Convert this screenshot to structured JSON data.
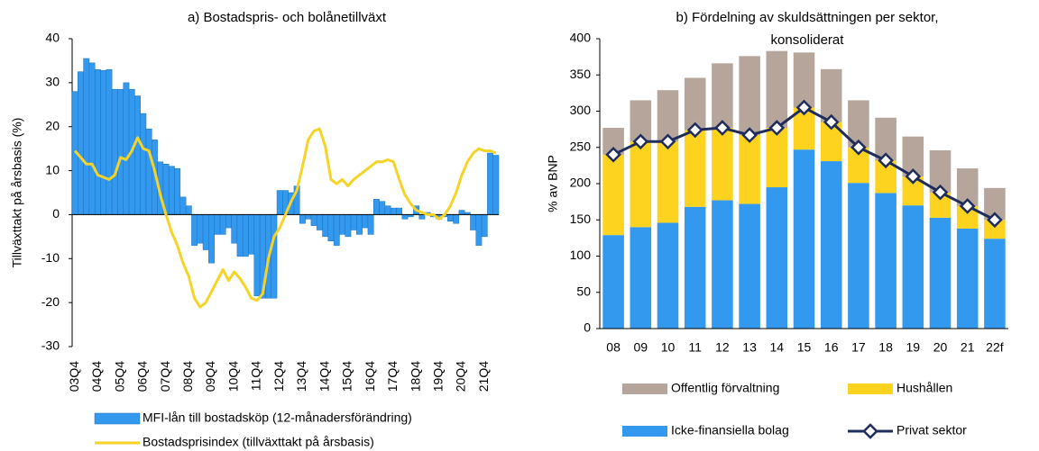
{
  "chart_data": [
    {
      "type": "bar_line",
      "title": "a) Bostadspris- och bolånetillväxt",
      "y_label": "Tillväxttakt på årsbasis (%)",
      "categories": [
        "03Q4",
        null,
        null,
        null,
        "04Q4",
        null,
        null,
        null,
        "05Q4",
        null,
        null,
        null,
        "06Q4",
        null,
        null,
        null,
        "07Q4",
        null,
        null,
        null,
        "08Q4",
        null,
        null,
        null,
        "09Q4",
        null,
        null,
        null,
        "10Q4",
        null,
        null,
        null,
        "11Q4",
        null,
        null,
        null,
        "12Q4",
        null,
        null,
        null,
        "13Q4",
        null,
        null,
        null,
        "14Q4",
        null,
        null,
        null,
        "15Q4",
        null,
        null,
        null,
        "16Q4",
        null,
        null,
        null,
        "17Q4",
        null,
        null,
        null,
        "18Q4",
        null,
        null,
        null,
        "19Q4",
        null,
        null,
        null,
        "20Q4",
        null,
        null,
        null,
        "21Q4",
        null,
        null
      ],
      "series": [
        {
          "name": "MFI-lån till bostadsköp (12-månadersförändring)",
          "kind": "bar",
          "color": "#3399ee",
          "values": [
            28,
            32.5,
            35.5,
            34.5,
            33,
            32.8,
            33,
            28.5,
            28.5,
            30,
            28.5,
            27,
            23,
            19.5,
            17,
            12,
            11.5,
            11,
            10.5,
            4,
            2,
            -7,
            -6.5,
            -8,
            -11,
            -4.5,
            -4.5,
            -3,
            -6.5,
            -9.5,
            -9.5,
            -9,
            -18.5,
            -19,
            -19,
            -19,
            5.5,
            5.5,
            5,
            6.5,
            -2,
            -1,
            -2.5,
            -3.5,
            -5,
            -6,
            -7,
            -4.5,
            -5,
            -3.5,
            -4.5,
            -3,
            -4.5,
            3.5,
            3,
            2,
            1.5,
            1.5,
            -1,
            -0.5,
            2,
            -1,
            0.5,
            -0.5,
            -1,
            -0.5,
            -1.5,
            -2,
            1,
            0.5,
            -3.5,
            -7,
            -5,
            14,
            13.5
          ]
        },
        {
          "name": "Bostadsprisindex (tillväxttakt på årsbasis)",
          "kind": "line",
          "color": "#f5d327",
          "values": [
            14.5,
            13,
            11.5,
            11.5,
            9,
            8.5,
            8,
            9,
            13,
            12.5,
            14.5,
            17.5,
            15,
            14.5,
            10,
            4.5,
            0,
            -4,
            -7,
            -11,
            -14,
            -19,
            -21,
            -20,
            -17.5,
            -15,
            -12.5,
            -15,
            -13,
            -14.5,
            -16.5,
            -19,
            -19.5,
            -18,
            -10,
            -5,
            -3,
            0,
            3,
            5.5,
            11,
            17,
            19,
            19.5,
            15.5,
            8,
            7,
            8,
            6.5,
            8,
            9,
            10,
            11,
            12,
            12,
            12.5,
            12,
            8,
            4.5,
            2.5,
            1,
            0.5,
            0,
            0,
            -1,
            0,
            2,
            5,
            9,
            12,
            14,
            15,
            14.5,
            14.5,
            14
          ]
        }
      ],
      "ylim": [
        -30,
        40
      ],
      "yticks": [
        -30,
        -20,
        -10,
        0,
        10,
        20,
        30,
        40
      ]
    },
    {
      "type": "stacked_bar_line",
      "title": [
        "b) Fördelning av skuldsättningen per sektor,",
        "konsoliderat"
      ],
      "y_label": "% av BNP",
      "categories": [
        "08",
        "09",
        "10",
        "11",
        "12",
        "13",
        "14",
        "15",
        "16",
        "17",
        "18",
        "19",
        "20",
        "21",
        "22f"
      ],
      "series": [
        {
          "name": "Icke-finansiella bolag",
          "kind": "bar",
          "color": "#3399ee",
          "values": [
            129,
            140,
            146,
            168,
            177,
            172,
            195,
            247,
            231,
            201,
            187,
            170,
            153,
            138,
            124
          ]
        },
        {
          "name": "Hushållen",
          "kind": "bar",
          "color": "#fdd31f",
          "values": [
            111,
            118,
            112,
            106,
            100,
            95,
            82,
            58,
            54,
            49,
            45,
            40,
            35,
            31,
            26
          ]
        },
        {
          "name": "Offentlig förvaltning",
          "kind": "bar",
          "color": "#b5a59a",
          "values": [
            37,
            57,
            71,
            72,
            89,
            109,
            106,
            76,
            73,
            65,
            59,
            55,
            58,
            52,
            44
          ]
        },
        {
          "name": "Privat sektor",
          "kind": "line",
          "color": "#1f2d5c",
          "values": [
            240,
            258,
            258,
            274,
            277,
            267,
            277,
            305,
            285,
            250,
            232,
            210,
            188,
            169,
            150
          ]
        }
      ],
      "ylim": [
        0,
        400
      ],
      "yticks": [
        0,
        50,
        100,
        150,
        200,
        250,
        300,
        350,
        400
      ]
    }
  ]
}
